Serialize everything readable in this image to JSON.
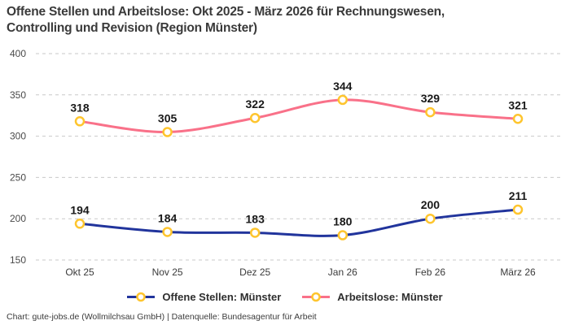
{
  "header": {
    "title_line1": "Offene Stellen und Arbeitslose: Okt 2025 - März 2026 für Rechnungswesen,",
    "title_line2": "Controlling und Revision (Region Münster)"
  },
  "chart_data": {
    "type": "line",
    "title": "Offene Stellen und Arbeitslose: Okt 2025 - März 2026 für Rechnungswesen, Controlling und Revision (Region Münster)",
    "categories": [
      "Okt 25",
      "Nov 25",
      "Dez 25",
      "Jan 26",
      "Feb 26",
      "März 26"
    ],
    "series": [
      {
        "name": "Offene Stellen: Münster",
        "values": [
          194,
          184,
          183,
          180,
          200,
          211
        ],
        "color": "#21349c"
      },
      {
        "name": "Arbeitslose: Münster",
        "values": [
          318,
          305,
          322,
          344,
          329,
          321
        ],
        "color": "#f97189"
      }
    ],
    "marker": {
      "fill": "#ffffff",
      "stroke": "#fec52e"
    },
    "y_ticks": [
      150,
      200,
      250,
      300,
      350,
      400
    ],
    "ylim": [
      150,
      400
    ],
    "grid": "dashed-horizontal",
    "grid_color": "#c9c9c9",
    "axis_text_color": "#4a4a4a",
    "value_label_color": "#191919",
    "legend_position": "bottom",
    "xlabel": "",
    "ylabel": ""
  },
  "footer": {
    "text": "Chart: gute-jobs.de (Wollmilchsau GmbH) | Datenquelle: Bundesagentur für Arbeit"
  }
}
